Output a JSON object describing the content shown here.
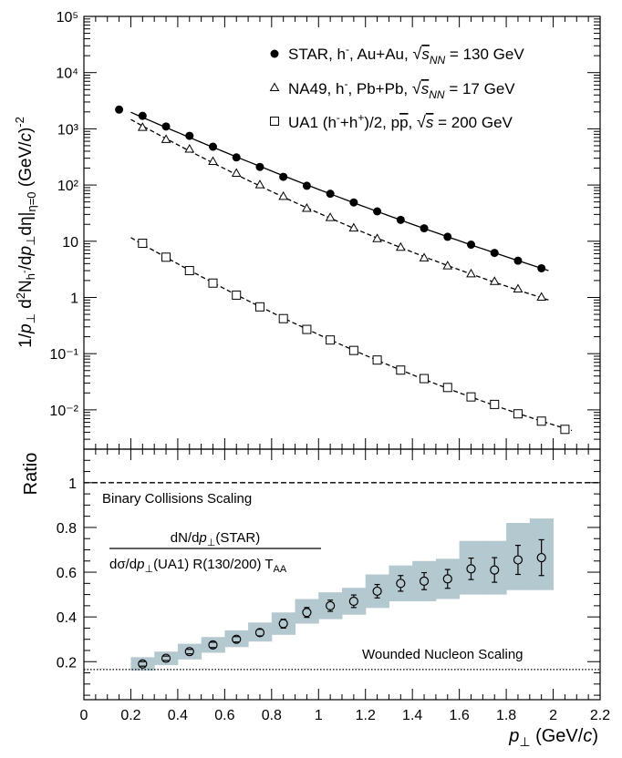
{
  "chart_data": [
    {
      "type": "scatter",
      "panel": "top",
      "yscale": "log",
      "ylim": [
        0.002,
        100000
      ],
      "ylabel": "1/p⊥ d²Nh-/dp⊥dη|η=0 (GeV/c)⁻²",
      "ytick_labels": [
        "10⁻²",
        "10⁻¹",
        "1",
        "10",
        "10²",
        "10³",
        "10⁴",
        "10⁵"
      ],
      "legend_position": "top-right",
      "series": [
        {
          "name": "STAR, h⁻, Au+Au, √sNN = 130 GeV",
          "marker": "filled-circle",
          "fit_line": "solid",
          "x": [
            0.15,
            0.25,
            0.35,
            0.45,
            0.55,
            0.65,
            0.75,
            0.85,
            0.95,
            1.05,
            1.15,
            1.25,
            1.35,
            1.45,
            1.55,
            1.65,
            1.75,
            1.85,
            1.95
          ],
          "values": [
            2200,
            1700,
            1100,
            750,
            480,
            310,
            210,
            140,
            97,
            70,
            49,
            34,
            24,
            17,
            12,
            8.7,
            6.2,
            4.5,
            3.3
          ]
        },
        {
          "name": "NA49, h⁻, Pb+Pb, √sNN = 17 GeV",
          "marker": "open-triangle",
          "fit_line": "dashed",
          "x": [
            0.25,
            0.35,
            0.45,
            0.55,
            0.65,
            0.75,
            0.85,
            0.95,
            1.05,
            1.15,
            1.25,
            1.35,
            1.45,
            1.55,
            1.65,
            1.75,
            1.85,
            1.95
          ],
          "values": [
            1050,
            640,
            430,
            260,
            160,
            100,
            62,
            38,
            26,
            17,
            11,
            7.7,
            5.0,
            3.6,
            2.6,
            1.9,
            1.4,
            1.0
          ]
        },
        {
          "name": "UA1 (h⁻+h⁺)/2, pp̄, √s = 200 GeV",
          "marker": "open-square",
          "fit_line": "dashed",
          "x": [
            0.25,
            0.35,
            0.45,
            0.55,
            0.65,
            0.75,
            0.85,
            0.95,
            1.05,
            1.15,
            1.25,
            1.35,
            1.45,
            1.55,
            1.65,
            1.75,
            1.85,
            1.95,
            2.05
          ],
          "values": [
            9.2,
            5.2,
            3.0,
            1.8,
            1.1,
            0.68,
            0.42,
            0.27,
            0.175,
            0.114,
            0.077,
            0.051,
            0.036,
            0.025,
            0.017,
            0.0125,
            0.0085,
            0.0063,
            0.0045
          ]
        }
      ]
    },
    {
      "type": "scatter",
      "panel": "bottom",
      "ylabel": "Ratio",
      "xlabel": "p⊥ (GeV/c)",
      "xlim": [
        0,
        2.2
      ],
      "ylim": [
        0.03,
        1.15
      ],
      "xtick_labels": [
        "0",
        "0.2",
        "0.4",
        "0.6",
        "0.8",
        "1",
        "1.2",
        "1.4",
        "1.6",
        "1.8",
        "2",
        "2.2"
      ],
      "ytick_labels": [
        "0.2",
        "0.4",
        "0.6",
        "0.8",
        "1"
      ],
      "series": [
        {
          "name": "dN/dp⊥(STAR) / dσ/dp⊥(UA1) R(130/200) TAA",
          "marker": "open-circle",
          "x": [
            0.25,
            0.35,
            0.45,
            0.55,
            0.65,
            0.75,
            0.85,
            0.95,
            1.05,
            1.15,
            1.25,
            1.35,
            1.45,
            1.55,
            1.65,
            1.75,
            1.85,
            1.95
          ],
          "values": [
            0.19,
            0.215,
            0.245,
            0.275,
            0.3,
            0.33,
            0.37,
            0.42,
            0.45,
            0.47,
            0.515,
            0.55,
            0.56,
            0.57,
            0.615,
            0.61,
            0.655,
            0.665
          ],
          "stat_error": [
            0.01,
            0.01,
            0.01,
            0.012,
            0.012,
            0.015,
            0.02,
            0.022,
            0.025,
            0.028,
            0.03,
            0.035,
            0.038,
            0.042,
            0.048,
            0.055,
            0.065,
            0.08
          ],
          "syst_low": [
            0.16,
            0.185,
            0.21,
            0.24,
            0.265,
            0.29,
            0.32,
            0.37,
            0.39,
            0.41,
            0.44,
            0.47,
            0.47,
            0.48,
            0.5,
            0.5,
            0.52,
            0.52
          ],
          "syst_high": [
            0.22,
            0.245,
            0.28,
            0.31,
            0.34,
            0.375,
            0.42,
            0.48,
            0.51,
            0.53,
            0.59,
            0.63,
            0.65,
            0.66,
            0.74,
            0.74,
            0.82,
            0.84
          ]
        }
      ],
      "reference_lines": [
        {
          "name": "Binary Collisions Scaling",
          "y": 1.0,
          "style": "dashed"
        },
        {
          "name": "Wounded Nucleon Scaling",
          "y": 0.165,
          "style": "dotted"
        }
      ],
      "band_color": "#b4c8d0"
    }
  ],
  "legend": {
    "star": {
      "pre": "STAR, h",
      "sup": "-",
      "mid": ", Au+Au, ",
      "root": "s",
      "sub": "NN",
      "post": " = 130 GeV"
    },
    "na49": {
      "pre": "NA49, h",
      "sup": "-",
      "mid": ", Pb+Pb, ",
      "root": "s",
      "sub": "NN",
      "post": " = 17 GeV"
    },
    "ua1": {
      "pre": "UA1 (h",
      "sup1": "-",
      "mid1": "+h",
      "sup2": "+",
      "mid2": ")/2, p",
      "pbar": "p",
      "mid3": ", ",
      "root": "s",
      "post": " = 200 GeV"
    }
  },
  "labels": {
    "binary": "Binary Collisions Scaling",
    "wounded": "Wounded Nucleon Scaling",
    "ratio_y": "Ratio",
    "frac_num": "dN/dp⊥(STAR)",
    "frac_den": "dσ/dp⊥(UA1)  R(130/200)  TAA",
    "x_axis_var": "p",
    "x_axis_sub": "⊥",
    "x_axis_unit": " (GeV/",
    "x_axis_c": "c",
    "x_axis_end": ")",
    "y_axis_top": "1/p⊥ d²Nh-/dp⊥dη|η=0 (GeV/c)⁻²"
  }
}
